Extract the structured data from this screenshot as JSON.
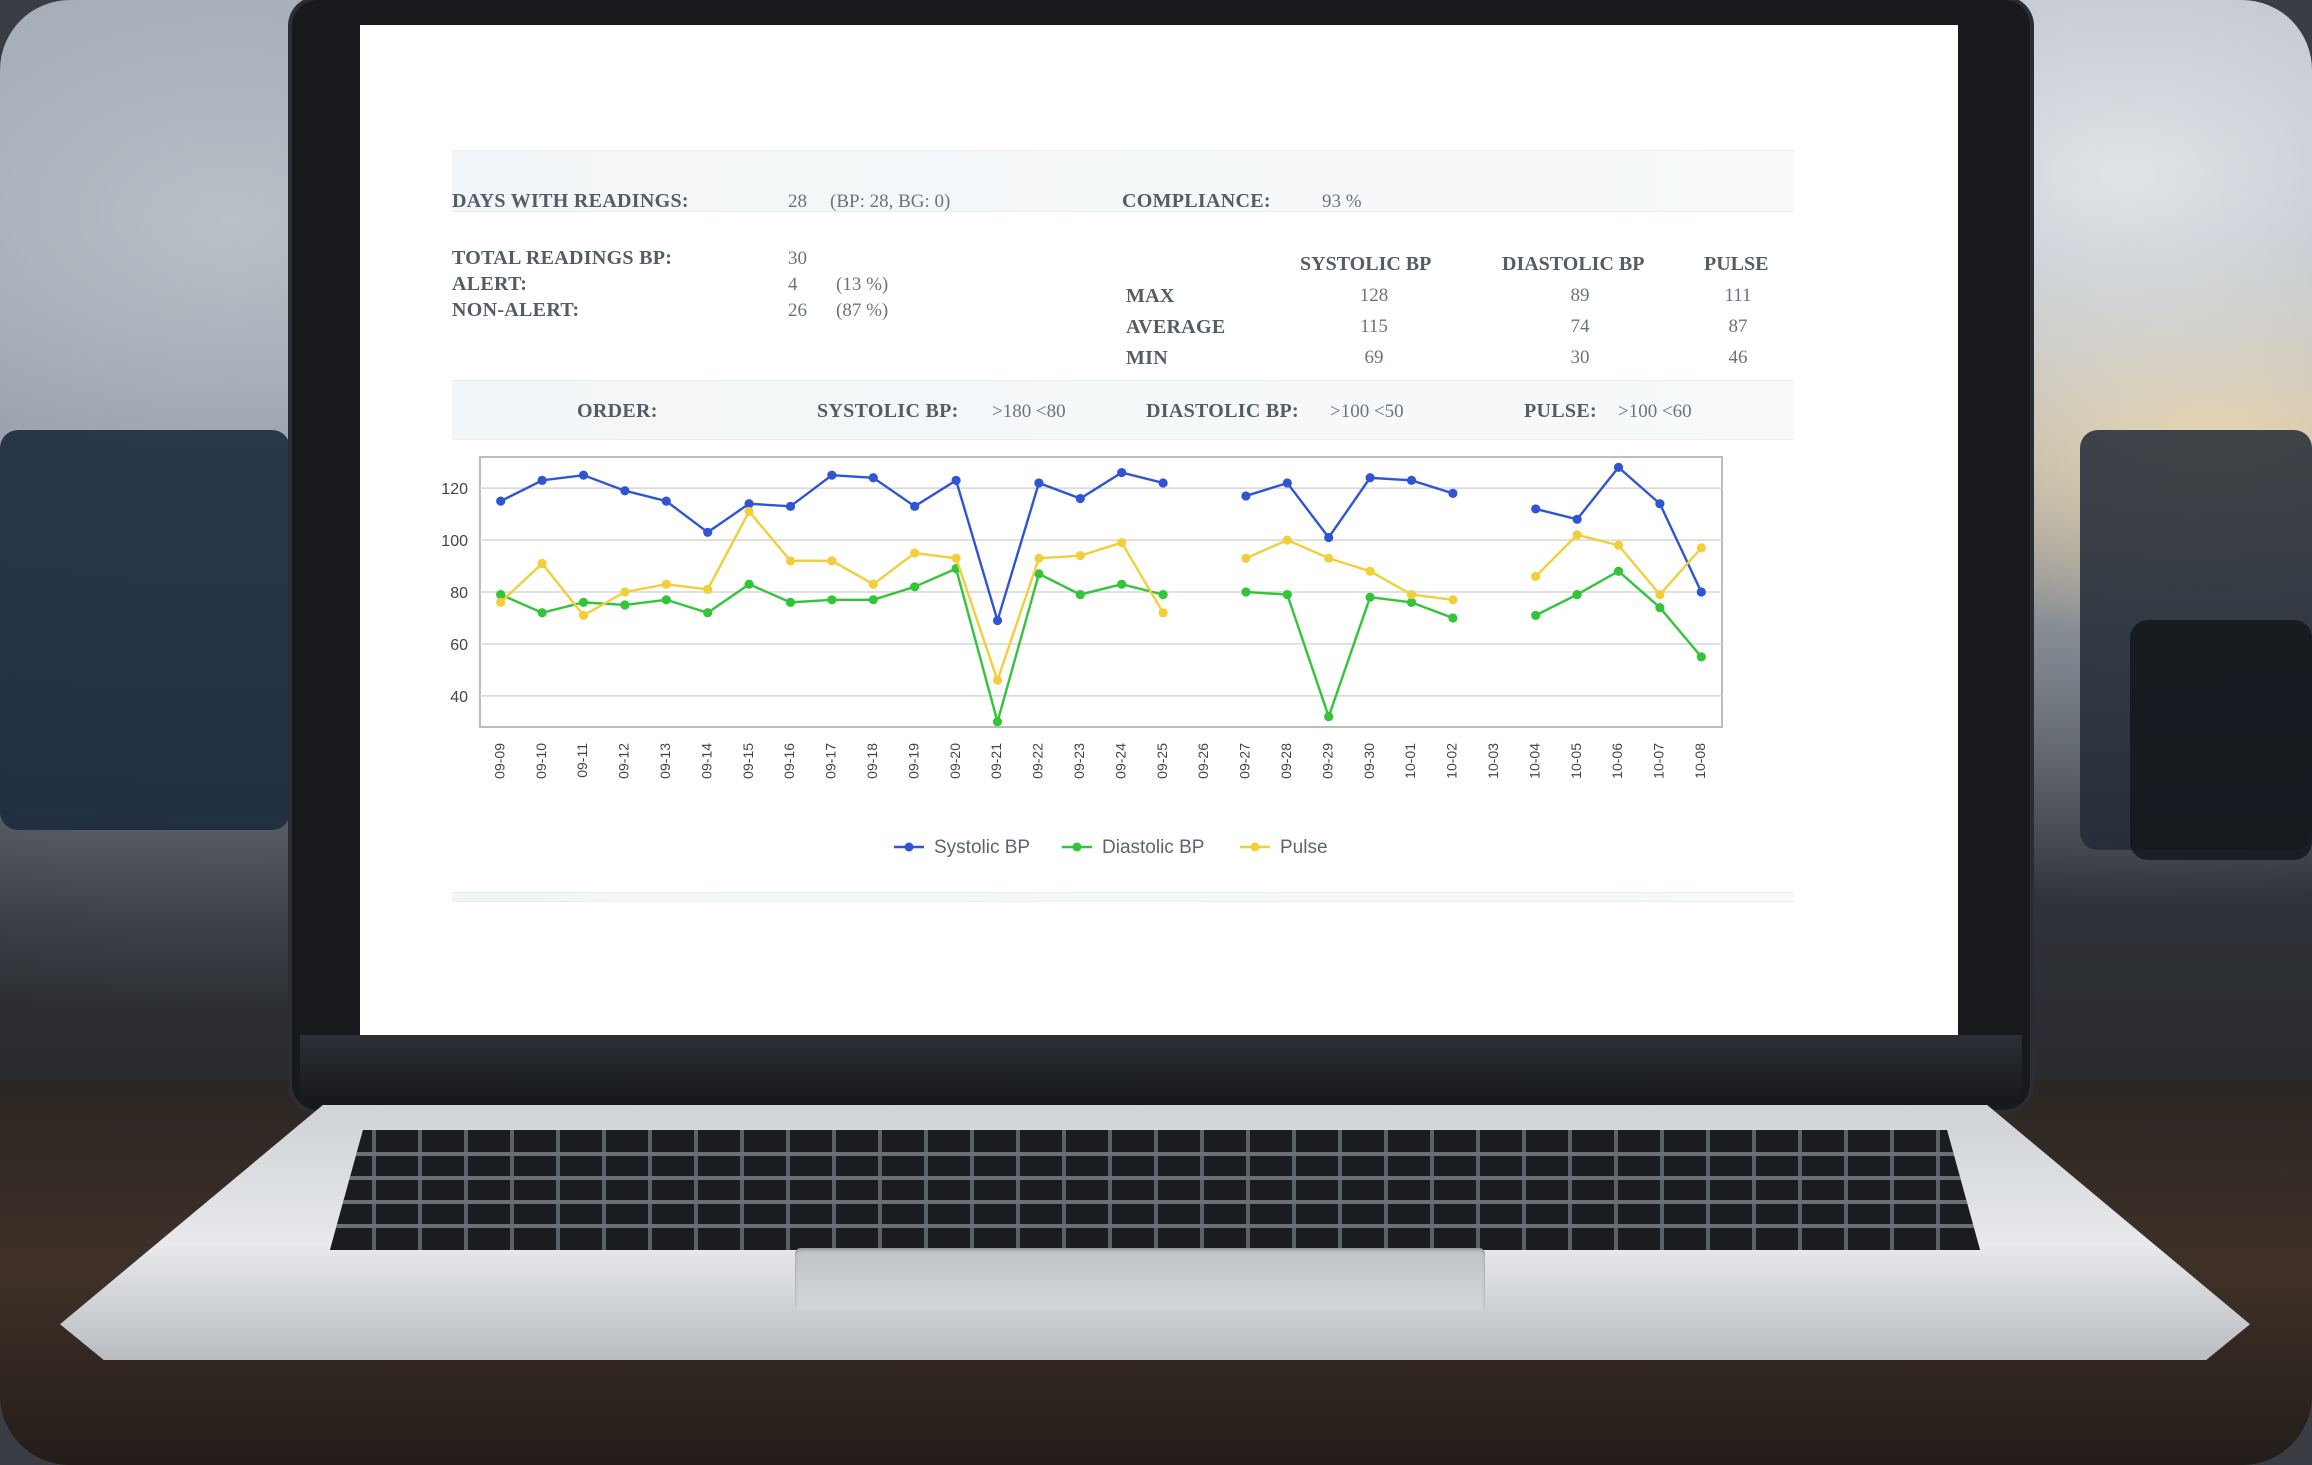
{
  "summary": {
    "days_label": "DAYS WITH READINGS:",
    "days_value": "28",
    "days_detail": "(BP: 28, BG: 0)",
    "compliance_label": "COMPLIANCE:",
    "compliance_value": "93 %",
    "total_label": "TOTAL READINGS BP:",
    "total_value": "30",
    "alert_label": "ALERT:",
    "alert_value": "4",
    "alert_pct": "(13 %)",
    "nonalert_label": "NON-ALERT:",
    "nonalert_value": "26",
    "nonalert_pct": "(87 %)"
  },
  "stats": {
    "headers": [
      "SYSTOLIC BP",
      "DIASTOLIC BP",
      "PULSE"
    ],
    "rows": [
      {
        "label": "MAX",
        "values": [
          "128",
          "89",
          "111"
        ]
      },
      {
        "label": "AVERAGE",
        "values": [
          "115",
          "74",
          "87"
        ]
      },
      {
        "label": "MIN",
        "values": [
          "69",
          "30",
          "46"
        ]
      }
    ]
  },
  "order": {
    "label": "ORDER:",
    "systolic_label": "SYSTOLIC BP:",
    "systolic_range": ">180 <80",
    "diastolic_label": "DIASTOLIC BP:",
    "diastolic_range": ">100 <50",
    "pulse_label": "PULSE:",
    "pulse_range": ">100 <60"
  },
  "colors": {
    "systolic": "#2f55d4",
    "diastolic": "#33c43a",
    "pulse": "#f2cf3a",
    "grid": "#d6d6d6"
  },
  "chart_data": {
    "type": "line",
    "categories": [
      "09-09",
      "09-10",
      "09-11",
      "09-12",
      "09-13",
      "09-14",
      "09-15",
      "09-16",
      "09-17",
      "09-18",
      "09-19",
      "09-20",
      "09-21",
      "09-22",
      "09-23",
      "09-24",
      "09-25",
      "09-26",
      "09-27",
      "09-28",
      "09-29",
      "09-30",
      "10-01",
      "10-02",
      "10-03",
      "10-04",
      "10-05",
      "10-06",
      "10-07",
      "10-08"
    ],
    "ylim": [
      28,
      132
    ],
    "yticks": [
      40,
      60,
      80,
      100,
      120
    ],
    "series": [
      {
        "name": "Systolic BP",
        "color_key": "systolic",
        "values": [
          115,
          123,
          125,
          119,
          115,
          103,
          114,
          113,
          125,
          124,
          113,
          123,
          69,
          122,
          116,
          126,
          122,
          null,
          117,
          122,
          101,
          124,
          123,
          118,
          null,
          112,
          108,
          128,
          114,
          80
        ]
      },
      {
        "name": "Diastolic BP",
        "color_key": "diastolic",
        "values": [
          79,
          72,
          76,
          75,
          77,
          72,
          83,
          76,
          77,
          77,
          82,
          89,
          30,
          87,
          79,
          83,
          79,
          null,
          80,
          79,
          32,
          78,
          76,
          70,
          null,
          71,
          79,
          88,
          74,
          55
        ]
      },
      {
        "name": "Pulse",
        "color_key": "pulse",
        "values": [
          76,
          91,
          71,
          80,
          83,
          81,
          111,
          92,
          92,
          83,
          95,
          93,
          46,
          93,
          94,
          99,
          72,
          null,
          93,
          100,
          93,
          88,
          79,
          77,
          null,
          86,
          102,
          98,
          79,
          97
        ]
      }
    ],
    "legend_position": "bottom-center"
  }
}
